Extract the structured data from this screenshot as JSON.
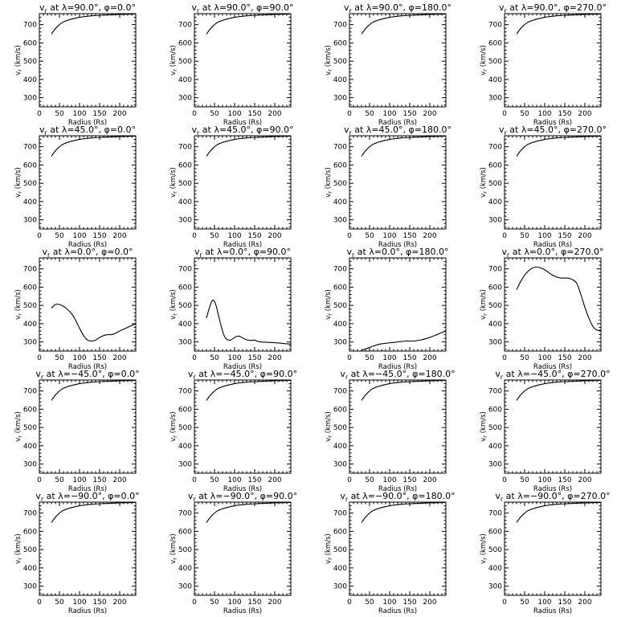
{
  "chart_data": [
    {
      "type": "line",
      "title": "v_r at λ=90.0°, φ=0.0°",
      "xlabel": "Radius (Rs)",
      "ylabel": "v_r (km/s)",
      "xlim": [
        0,
        240
      ],
      "ylim": [
        250,
        760
      ],
      "xticks": [
        0,
        50,
        100,
        150,
        200
      ],
      "yticks": [
        300,
        400,
        500,
        600,
        700
      ],
      "x": [
        30,
        40,
        50,
        60,
        80,
        100,
        130,
        160,
        200,
        240
      ],
      "y": [
        648,
        678,
        700,
        715,
        730,
        740,
        748,
        752,
        756,
        758
      ]
    },
    {
      "type": "line",
      "title": "v_r at λ=90.0°, φ=90.0°",
      "xlabel": "Radius (Rs)",
      "ylabel": "v_r (km/s)",
      "xlim": [
        0,
        240
      ],
      "ylim": [
        250,
        760
      ],
      "xticks": [
        0,
        50,
        100,
        150,
        200
      ],
      "yticks": [
        300,
        400,
        500,
        600,
        700
      ],
      "x": [
        30,
        40,
        50,
        60,
        80,
        100,
        130,
        160,
        200,
        240
      ],
      "y": [
        648,
        678,
        700,
        715,
        730,
        740,
        748,
        752,
        756,
        758
      ]
    },
    {
      "type": "line",
      "title": "v_r at λ=90.0°, φ=180.0°",
      "xlabel": "Radius (Rs)",
      "ylabel": "v_r (km/s)",
      "xlim": [
        0,
        240
      ],
      "ylim": [
        250,
        760
      ],
      "xticks": [
        0,
        50,
        100,
        150,
        200
      ],
      "yticks": [
        300,
        400,
        500,
        600,
        700
      ],
      "x": [
        30,
        40,
        50,
        60,
        80,
        100,
        130,
        160,
        200,
        240
      ],
      "y": [
        648,
        678,
        700,
        715,
        730,
        740,
        748,
        752,
        756,
        758
      ]
    },
    {
      "type": "line",
      "title": "v_r at λ=90.0°, φ=270.0°",
      "xlabel": "Radius (Rs)",
      "ylabel": "v_r (km/s)",
      "xlim": [
        0,
        240
      ],
      "ylim": [
        250,
        760
      ],
      "xticks": [
        0,
        50,
        100,
        150,
        200
      ],
      "yticks": [
        300,
        400,
        500,
        600,
        700
      ],
      "x": [
        30,
        40,
        50,
        60,
        80,
        100,
        130,
        160,
        200,
        240
      ],
      "y": [
        648,
        678,
        700,
        715,
        730,
        740,
        748,
        752,
        756,
        758
      ]
    },
    {
      "type": "line",
      "title": "v_r at λ=45.0°, φ=0.0°",
      "xlabel": "Radius (Rs)",
      "ylabel": "v_r (km/s)",
      "xlim": [
        0,
        240
      ],
      "ylim": [
        250,
        760
      ],
      "xticks": [
        0,
        50,
        100,
        150,
        200
      ],
      "yticks": [
        300,
        400,
        500,
        600,
        700
      ],
      "x": [
        30,
        40,
        50,
        60,
        80,
        100,
        130,
        160,
        200,
        240
      ],
      "y": [
        648,
        678,
        700,
        715,
        730,
        740,
        748,
        752,
        756,
        758
      ]
    },
    {
      "type": "line",
      "title": "v_r at λ=45.0°, φ=90.0°",
      "xlabel": "Radius (Rs)",
      "ylabel": "v_r (km/s)",
      "xlim": [
        0,
        240
      ],
      "ylim": [
        250,
        760
      ],
      "xticks": [
        0,
        50,
        100,
        150,
        200
      ],
      "yticks": [
        300,
        400,
        500,
        600,
        700
      ],
      "x": [
        30,
        40,
        50,
        60,
        80,
        100,
        130,
        160,
        200,
        240
      ],
      "y": [
        648,
        678,
        700,
        715,
        730,
        740,
        748,
        752,
        756,
        758
      ]
    },
    {
      "type": "line",
      "title": "v_r at λ=45.0°, φ=180.0°",
      "xlabel": "Radius (Rs)",
      "ylabel": "v_r (km/s)",
      "xlim": [
        0,
        240
      ],
      "ylim": [
        250,
        760
      ],
      "xticks": [
        0,
        50,
        100,
        150,
        200
      ],
      "yticks": [
        300,
        400,
        500,
        600,
        700
      ],
      "x": [
        30,
        40,
        50,
        60,
        80,
        100,
        130,
        160,
        200,
        240
      ],
      "y": [
        648,
        678,
        700,
        715,
        730,
        740,
        748,
        752,
        756,
        758
      ]
    },
    {
      "type": "line",
      "title": "v_r at λ=45.0°, φ=270.0°",
      "xlabel": "Radius (Rs)",
      "ylabel": "v_r (km/s)",
      "xlim": [
        0,
        240
      ],
      "ylim": [
        250,
        760
      ],
      "xticks": [
        0,
        50,
        100,
        150,
        200
      ],
      "yticks": [
        300,
        400,
        500,
        600,
        700
      ],
      "x": [
        30,
        40,
        50,
        60,
        80,
        100,
        130,
        160,
        200,
        240
      ],
      "y": [
        648,
        678,
        700,
        715,
        730,
        740,
        748,
        752,
        756,
        758
      ]
    },
    {
      "type": "line",
      "title": "v_r at λ=0.0°, φ=0.0°",
      "xlabel": "Radius (Rs)",
      "ylabel": "v_r (km/s)",
      "xlim": [
        0,
        240
      ],
      "ylim": [
        250,
        760
      ],
      "xticks": [
        0,
        50,
        100,
        150,
        200
      ],
      "yticks": [
        300,
        400,
        500,
        600,
        700
      ],
      "x": [
        30,
        40,
        50,
        60,
        70,
        80,
        90,
        100,
        110,
        120,
        130,
        140,
        150,
        160,
        170,
        180,
        190,
        200,
        210,
        220,
        230,
        240
      ],
      "y": [
        485,
        505,
        505,
        495,
        478,
        455,
        420,
        375,
        335,
        310,
        305,
        310,
        325,
        335,
        340,
        340,
        348,
        360,
        370,
        380,
        390,
        400
      ]
    },
    {
      "type": "line",
      "title": "v_r at λ=0.0°, φ=90.0°",
      "xlabel": "Radius (Rs)",
      "ylabel": "v_r (km/s)",
      "xlim": [
        0,
        240
      ],
      "ylim": [
        250,
        760
      ],
      "xticks": [
        0,
        50,
        100,
        150,
        200
      ],
      "yticks": [
        300,
        400,
        500,
        600,
        700
      ],
      "x": [
        30,
        35,
        40,
        45,
        50,
        55,
        60,
        65,
        70,
        75,
        80,
        90,
        100,
        110,
        120,
        130,
        140,
        150,
        160,
        180,
        200,
        220,
        240
      ],
      "y": [
        430,
        470,
        505,
        528,
        522,
        490,
        445,
        400,
        360,
        330,
        315,
        310,
        325,
        332,
        322,
        312,
        308,
        310,
        302,
        298,
        296,
        292,
        288
      ]
    },
    {
      "type": "line",
      "title": "v_r at λ=0.0°, φ=180.0°",
      "xlabel": "Radius (Rs)",
      "ylabel": "v_r (km/s)",
      "xlim": [
        0,
        240
      ],
      "ylim": [
        250,
        760
      ],
      "xticks": [
        0,
        50,
        100,
        150,
        200
      ],
      "yticks": [
        300,
        400,
        500,
        600,
        700
      ],
      "x": [
        30,
        40,
        50,
        60,
        70,
        80,
        100,
        120,
        140,
        160,
        180,
        200,
        220,
        240
      ],
      "y": [
        255,
        262,
        270,
        278,
        285,
        290,
        295,
        300,
        305,
        305,
        312,
        325,
        342,
        360
      ]
    },
    {
      "type": "line",
      "title": "v_r at λ=0.0°, φ=270.0°",
      "xlabel": "Radius (Rs)",
      "ylabel": "v_r (km/s)",
      "xlim": [
        0,
        240
      ],
      "ylim": [
        250,
        760
      ],
      "xticks": [
        0,
        50,
        100,
        150,
        200
      ],
      "yticks": [
        300,
        400,
        500,
        600,
        700
      ],
      "x": [
        30,
        40,
        50,
        60,
        70,
        80,
        90,
        100,
        110,
        120,
        130,
        140,
        150,
        160,
        170,
        180,
        190,
        200,
        210,
        220,
        230,
        240
      ],
      "y": [
        585,
        630,
        665,
        690,
        705,
        710,
        705,
        695,
        680,
        665,
        655,
        650,
        650,
        648,
        640,
        620,
        560,
        490,
        430,
        385,
        365,
        365
      ]
    },
    {
      "type": "line",
      "title": "v_r at λ=−45.0°, φ=0.0°",
      "xlabel": "Radius (Rs)",
      "ylabel": "v_r (km/s)",
      "xlim": [
        0,
        240
      ],
      "ylim": [
        250,
        760
      ],
      "xticks": [
        0,
        50,
        100,
        150,
        200
      ],
      "yticks": [
        300,
        400,
        500,
        600,
        700
      ],
      "x": [
        30,
        40,
        50,
        60,
        80,
        100,
        130,
        160,
        200,
        240
      ],
      "y": [
        648,
        678,
        700,
        715,
        730,
        740,
        748,
        752,
        756,
        758
      ]
    },
    {
      "type": "line",
      "title": "v_r at λ=−45.0°, φ=90.0°",
      "xlabel": "Radius (Rs)",
      "ylabel": "v_r (km/s)",
      "xlim": [
        0,
        240
      ],
      "ylim": [
        250,
        760
      ],
      "xticks": [
        0,
        50,
        100,
        150,
        200
      ],
      "yticks": [
        300,
        400,
        500,
        600,
        700
      ],
      "x": [
        30,
        40,
        50,
        60,
        80,
        100,
        130,
        160,
        200,
        240
      ],
      "y": [
        648,
        678,
        700,
        715,
        730,
        740,
        748,
        752,
        756,
        758
      ]
    },
    {
      "type": "line",
      "title": "v_r at λ=−45.0°, φ=180.0°",
      "xlabel": "Radius (Rs)",
      "ylabel": "v_r (km/s)",
      "xlim": [
        0,
        240
      ],
      "ylim": [
        250,
        760
      ],
      "xticks": [
        0,
        50,
        100,
        150,
        200
      ],
      "yticks": [
        300,
        400,
        500,
        600,
        700
      ],
      "x": [
        30,
        40,
        50,
        60,
        80,
        100,
        130,
        160,
        200,
        240
      ],
      "y": [
        648,
        678,
        700,
        715,
        730,
        740,
        748,
        752,
        756,
        758
      ]
    },
    {
      "type": "line",
      "title": "v_r at λ=−45.0°, φ=270.0°",
      "xlabel": "Radius (Rs)",
      "ylabel": "v_r (km/s)",
      "xlim": [
        0,
        240
      ],
      "ylim": [
        250,
        760
      ],
      "xticks": [
        0,
        50,
        100,
        150,
        200
      ],
      "yticks": [
        300,
        400,
        500,
        600,
        700
      ],
      "x": [
        30,
        40,
        50,
        60,
        80,
        100,
        130,
        160,
        200,
        240
      ],
      "y": [
        648,
        678,
        700,
        715,
        730,
        740,
        748,
        752,
        756,
        758
      ]
    },
    {
      "type": "line",
      "title": "v_r at λ=−90.0°, φ=0.0°",
      "xlabel": "Radius (Rs)",
      "ylabel": "v_r (km/s)",
      "xlim": [
        0,
        240
      ],
      "ylim": [
        250,
        760
      ],
      "xticks": [
        0,
        50,
        100,
        150,
        200
      ],
      "yticks": [
        300,
        400,
        500,
        600,
        700
      ],
      "x": [
        30,
        40,
        50,
        60,
        80,
        100,
        130,
        160,
        200,
        240
      ],
      "y": [
        648,
        678,
        700,
        715,
        730,
        740,
        748,
        752,
        756,
        758
      ]
    },
    {
      "type": "line",
      "title": "v_r at λ=−90.0°, φ=90.0°",
      "xlabel": "Radius (Rs)",
      "ylabel": "v_r (km/s)",
      "xlim": [
        0,
        240
      ],
      "ylim": [
        250,
        760
      ],
      "xticks": [
        0,
        50,
        100,
        150,
        200
      ],
      "yticks": [
        300,
        400,
        500,
        600,
        700
      ],
      "x": [
        30,
        40,
        50,
        60,
        80,
        100,
        130,
        160,
        200,
        240
      ],
      "y": [
        648,
        678,
        700,
        715,
        730,
        740,
        748,
        752,
        756,
        758
      ]
    },
    {
      "type": "line",
      "title": "v_r at λ=−90.0°, φ=180.0°",
      "xlabel": "Radius (Rs)",
      "ylabel": "v_r (km/s)",
      "xlim": [
        0,
        240
      ],
      "ylim": [
        250,
        760
      ],
      "xticks": [
        0,
        50,
        100,
        150,
        200
      ],
      "yticks": [
        300,
        400,
        500,
        600,
        700
      ],
      "x": [
        30,
        40,
        50,
        60,
        80,
        100,
        130,
        160,
        200,
        240
      ],
      "y": [
        648,
        678,
        700,
        715,
        730,
        740,
        748,
        752,
        756,
        758
      ]
    },
    {
      "type": "line",
      "title": "v_r at λ=−90.0°, φ=270.0°",
      "xlabel": "Radius (Rs)",
      "ylabel": "v_r (km/s)",
      "xlim": [
        0,
        240
      ],
      "ylim": [
        250,
        760
      ],
      "xticks": [
        0,
        50,
        100,
        150,
        200
      ],
      "yticks": [
        300,
        400,
        500,
        600,
        700
      ],
      "x": [
        30,
        40,
        50,
        60,
        80,
        100,
        130,
        160,
        200,
        240
      ],
      "y": [
        648,
        678,
        700,
        715,
        730,
        740,
        748,
        752,
        756,
        758
      ]
    }
  ]
}
